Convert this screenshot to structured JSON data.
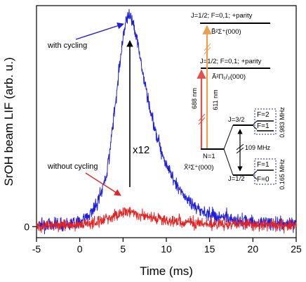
{
  "chart_data": {
    "type": "line",
    "xlabel": "Time (ms)",
    "ylabel": "SrOH beam LIF (arb. u.)",
    "xlim": [
      -5,
      25
    ],
    "ylim": [
      -0.05,
      1.0
    ],
    "x_ticks": [
      "-5",
      "0",
      "5",
      "10",
      "15",
      "20",
      "25"
    ],
    "y_ticks": [
      "0"
    ],
    "grid": false,
    "series": [
      {
        "name": "with cycling",
        "color": "#1f1fdd",
        "noise": 0.03,
        "x": [
          -5,
          -1,
          0,
          1,
          2,
          3,
          3.5,
          4,
          4.5,
          5,
          5.3,
          5.6,
          5.9,
          6.2,
          6.6,
          7,
          7.5,
          8,
          8.5,
          9,
          9.5,
          10,
          11,
          12,
          13,
          14,
          16,
          18,
          20,
          22,
          25
        ],
        "y": [
          0.01,
          0.015,
          0.025,
          0.05,
          0.1,
          0.22,
          0.35,
          0.52,
          0.7,
          0.86,
          0.93,
          0.96,
          0.95,
          0.92,
          0.85,
          0.76,
          0.65,
          0.55,
          0.47,
          0.4,
          0.34,
          0.28,
          0.2,
          0.14,
          0.1,
          0.07,
          0.045,
          0.03,
          0.02,
          0.015,
          0.01
        ]
      },
      {
        "name": "without cycling",
        "color": "#e52222",
        "noise": 0.025,
        "x": [
          -5,
          0,
          2,
          3,
          4,
          5,
          5.5,
          6,
          7,
          8,
          9,
          10,
          12,
          15,
          20,
          25
        ],
        "y": [
          0.005,
          0.01,
          0.02,
          0.035,
          0.05,
          0.065,
          0.07,
          0.065,
          0.055,
          0.045,
          0.035,
          0.028,
          0.02,
          0.012,
          0.008,
          0.005
        ]
      }
    ],
    "annotations": {
      "with_cycling": "with cycling",
      "without_cycling": "without cycling",
      "factor": "x12"
    }
  },
  "energy_levels": {
    "b_top": "J=1/2; F=0,1; +parity",
    "b_state": "B̃²Σ⁺(000)",
    "a_top": "J=1/2; F=0,1; +parity",
    "a_state": "Ã²Π₁/₂(000)",
    "laser_688": "688 nm",
    "laser_611": "611 nm",
    "x_state": "X̃²Σ⁺(000)",
    "n_label": "N=1",
    "j32": "J=3/2",
    "j12": "J=1/2",
    "f2": "F=2",
    "f1_upper": "F=1",
    "f1_lower": "F=1",
    "f0": "F=0",
    "split_109": "109 MHz",
    "split_0983": "0.983 MHz",
    "split_0165": "0.165 MHz",
    "color_688": "#e05050",
    "color_611": "#e8a050"
  }
}
